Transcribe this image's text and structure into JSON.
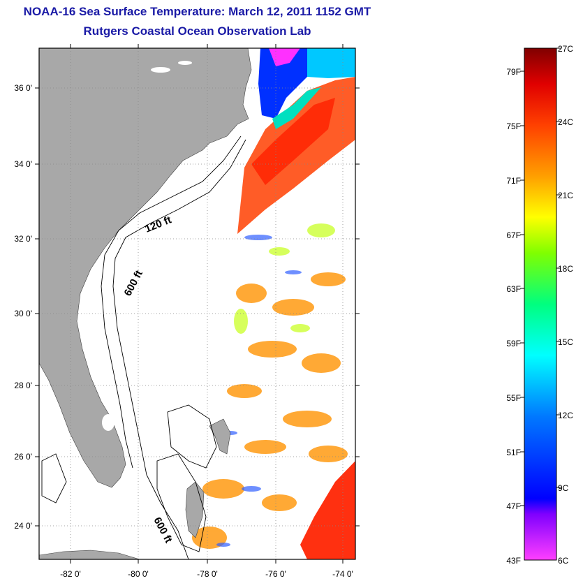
{
  "title": "NOAA-16 Sea Surface Temperature:  March 12, 2011 1152 GMT",
  "subtitle": "Rutgers Coastal Ocean Observation Lab",
  "map": {
    "lat_ticks": [
      "36 0'",
      "34 0'",
      "32 0'",
      "30 0'",
      "28 0'",
      "26 0'",
      "24 0'"
    ],
    "lon_ticks": [
      "-82 0'",
      "-80 0'",
      "-78 0'",
      "-76 0'",
      "-74 0'"
    ],
    "contour_labels": [
      "120 ft",
      "600 ft",
      "600 ft"
    ],
    "colors": {
      "land": "#a8a8a8",
      "background": "#ffffff",
      "grid": "#888888"
    }
  },
  "colorbar": {
    "fahrenheit_labels": [
      "79F",
      "75F",
      "71F",
      "67F",
      "63F",
      "59F",
      "55F",
      "51F",
      "47F",
      "43F"
    ],
    "celsius_labels": [
      "27C",
      "24C",
      "21C",
      "18C",
      "15C",
      "12C",
      "9C",
      "6C"
    ],
    "colormap": [
      "#ff3fff",
      "#7f00ff",
      "#0000ff",
      "#0078ff",
      "#00ffff",
      "#00ff7f",
      "#80ff00",
      "#ffff00",
      "#ff9f00",
      "#ff4000",
      "#e00000",
      "#800000"
    ]
  }
}
